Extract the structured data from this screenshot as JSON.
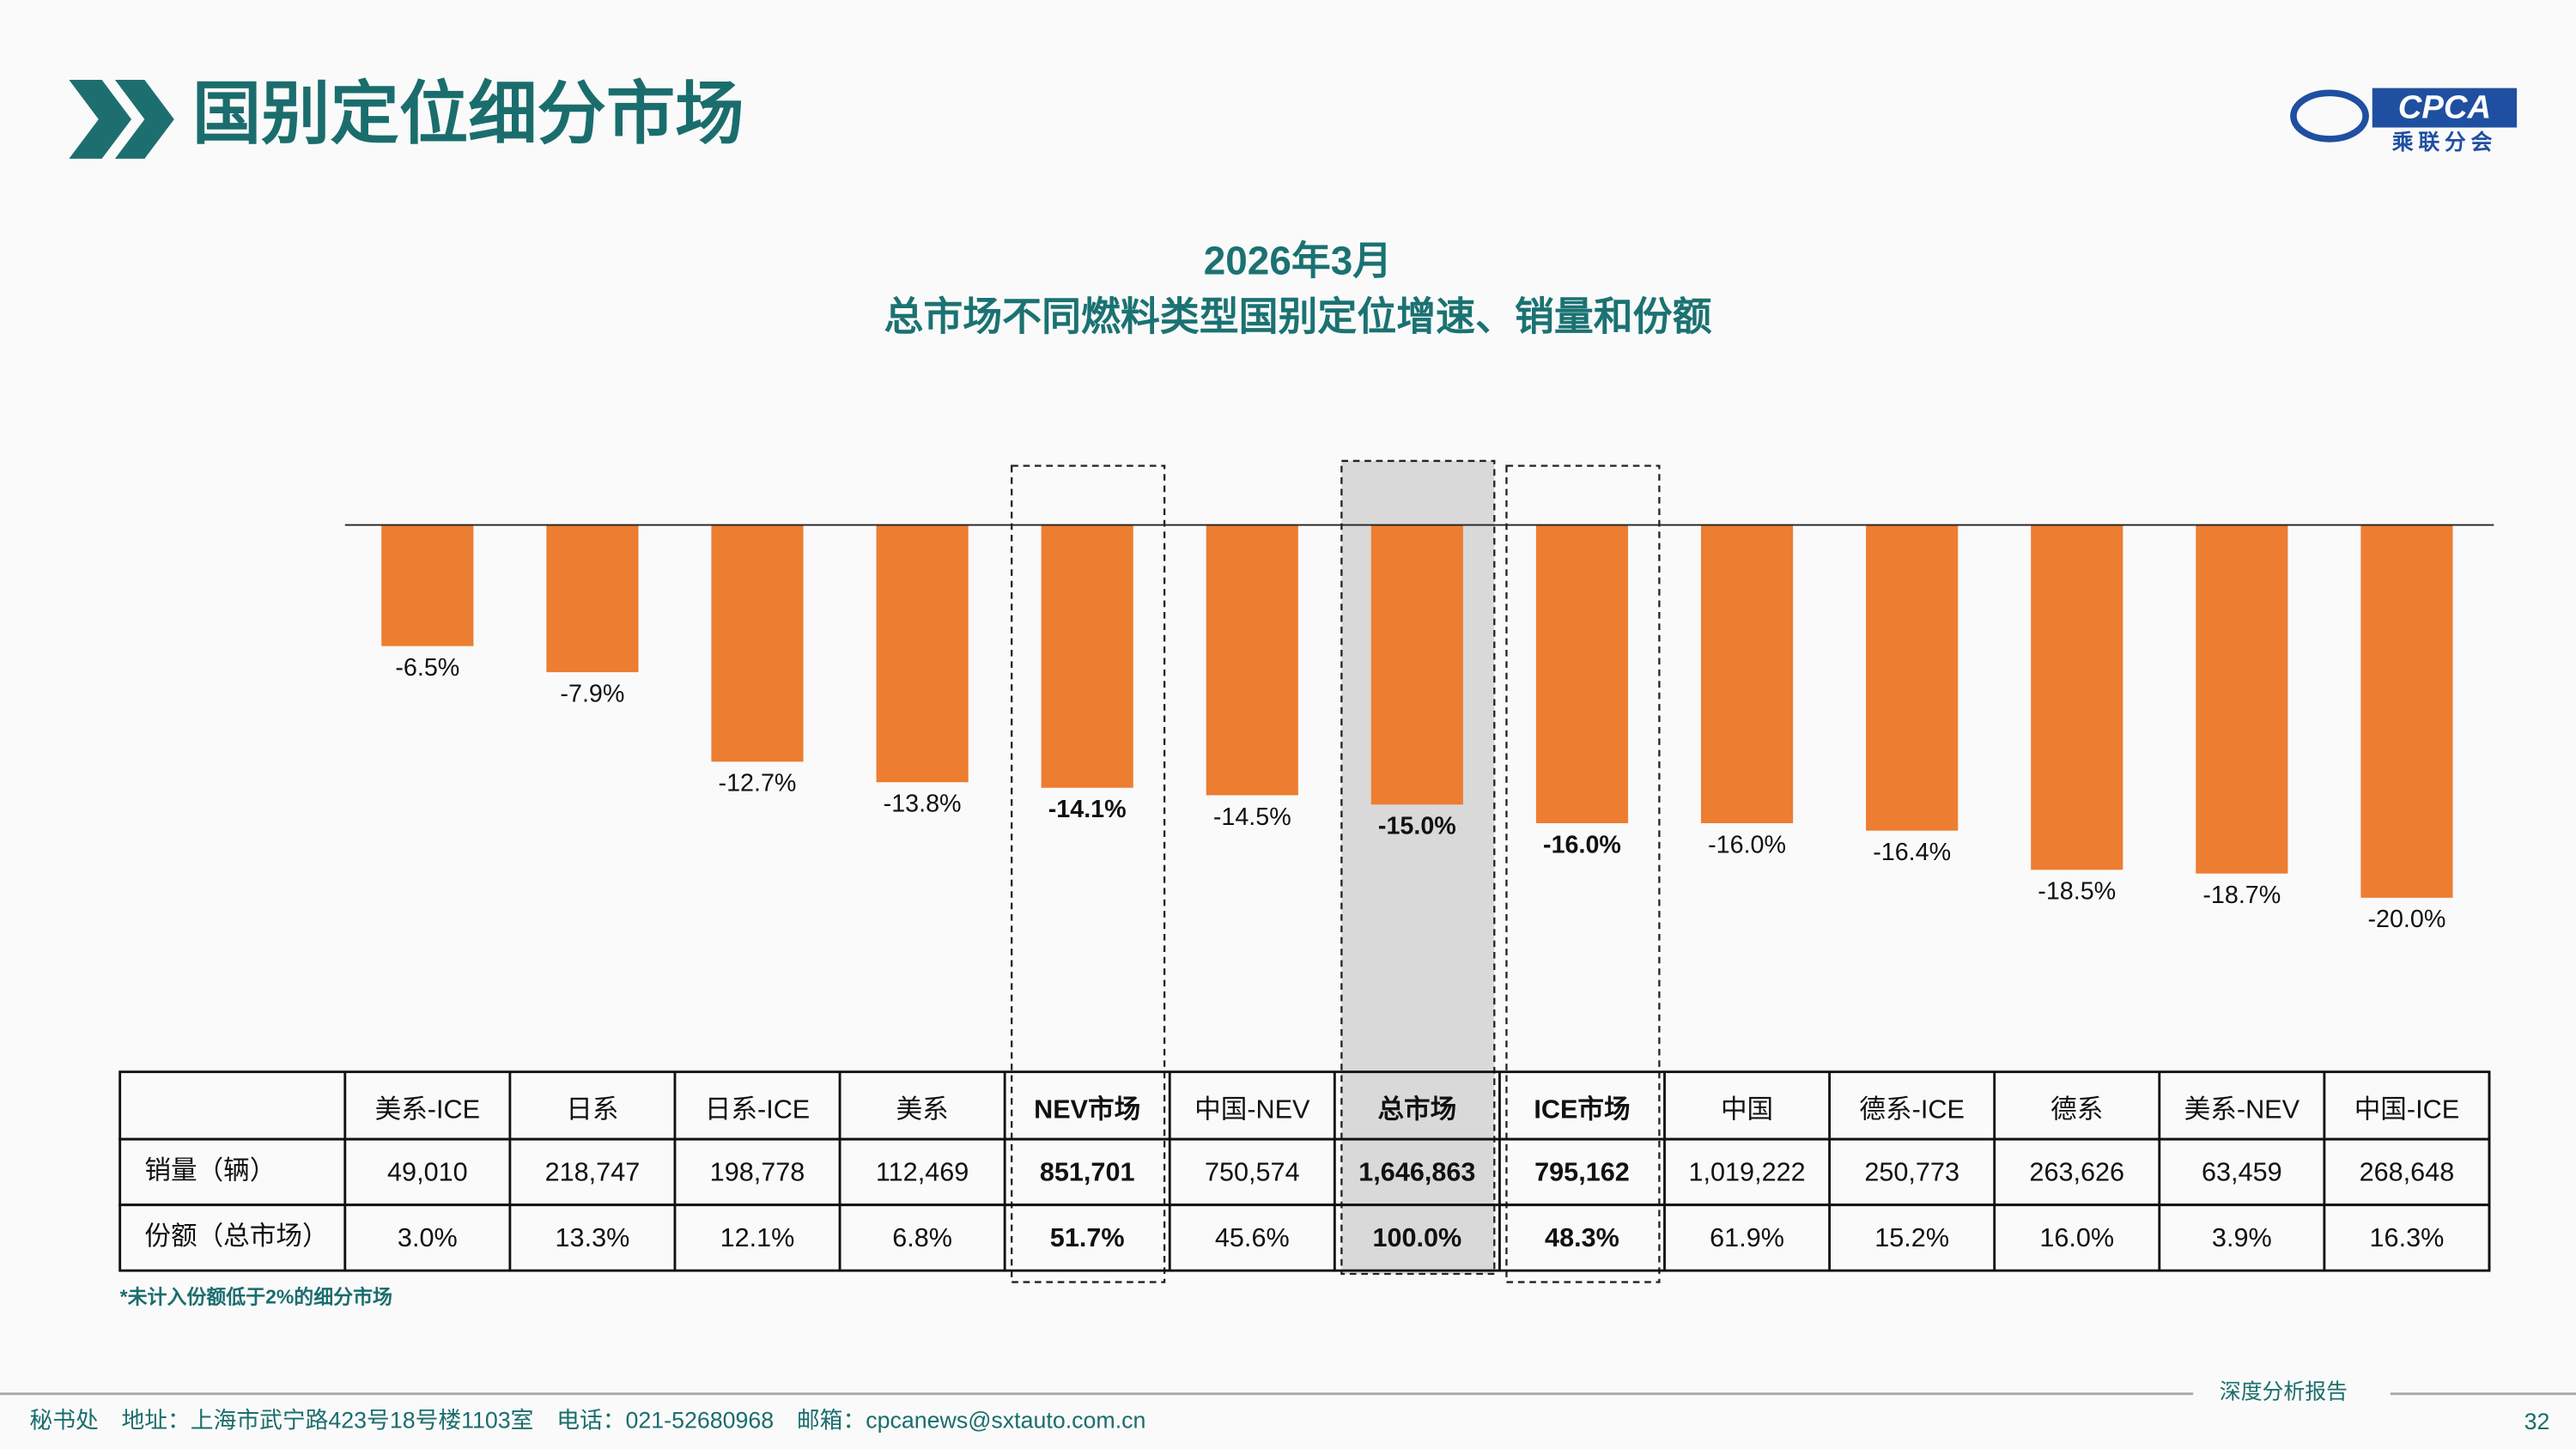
{
  "header": {
    "title": "国别定位细分市场",
    "logo": "CPCA",
    "logo_sub": "乘联分会"
  },
  "chart_data": {
    "type": "bar",
    "title": "2026年3月",
    "subtitle": "总市场不同燃料类型国别定位增速、销量和份额",
    "categories": [
      "美系-ICE",
      "日系",
      "日系-ICE",
      "美系",
      "NEV市场",
      "中国-NEV",
      "总市场",
      "ICE市场",
      "中国",
      "德系-ICE",
      "德系",
      "美系-NEV",
      "中国-ICE"
    ],
    "values": [
      -6.5,
      -7.9,
      -12.7,
      -13.8,
      -14.1,
      -14.5,
      -15.0,
      -16.0,
      -16.0,
      -16.4,
      -18.5,
      -18.7,
      -20.0
    ],
    "value_labels": [
      "-6.5%",
      "-7.9%",
      "-12.7%",
      "-13.8%",
      "-14.1%",
      "-14.5%",
      "-15.0%",
      "-16.0%",
      "-16.0%",
      "-16.4%",
      "-18.5%",
      "-18.7%",
      "-20.0%"
    ],
    "color": "#ed7d31",
    "bold_categories": [
      4,
      6,
      7
    ],
    "shaded_category": 6,
    "table": {
      "row_headers": [
        "销量（辆）",
        "份额（总市场）"
      ],
      "rows": [
        [
          "49,010",
          "218,747",
          "198,778",
          "112,469",
          "851,701",
          "750,574",
          "1,646,863",
          "795,162",
          "1,019,222",
          "250,773",
          "263,626",
          "63,459",
          "268,648"
        ],
        [
          "3.0%",
          "13.3%",
          "12.1%",
          "6.8%",
          "51.7%",
          "45.6%",
          "100.0%",
          "48.3%",
          "61.9%",
          "15.2%",
          "16.0%",
          "3.9%",
          "16.3%"
        ]
      ]
    },
    "footnote": "*未计入份额低于2%的细分市场"
  },
  "footer": {
    "contact": "秘书处　地址：上海市武宁路423号18号楼1103室　电话：021-52680968　邮箱：cpcanews@sxtauto.com.cn",
    "report": "深度分析报告",
    "page": "32"
  }
}
